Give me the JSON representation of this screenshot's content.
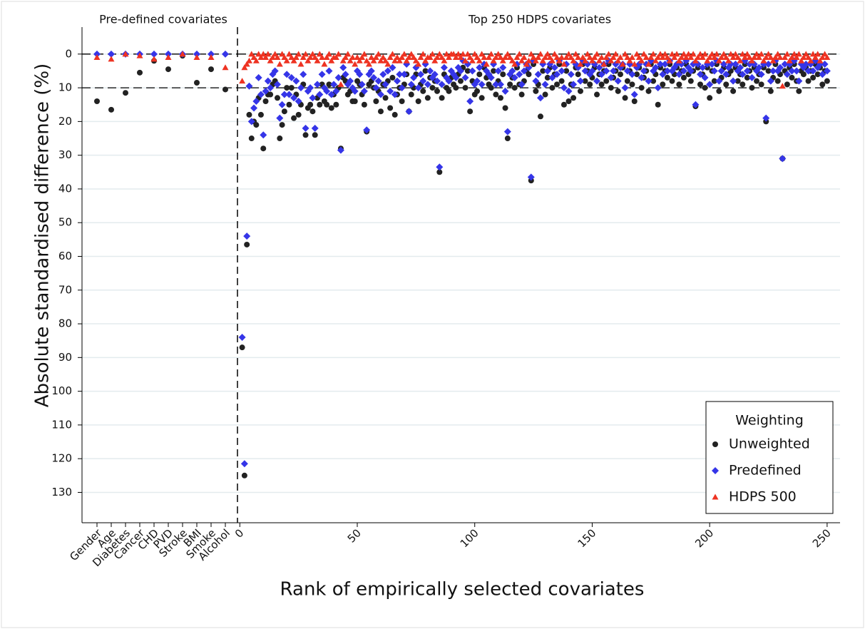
{
  "chart_data": [
    {
      "type": "scatter",
      "title": "Pre-defined covariates",
      "ylabel": "Absolute standardised difference (%)",
      "categories": [
        "Gender",
        "Age",
        "Diabetes",
        "Cancer",
        "CHD",
        "PVD",
        "Stroke",
        "BMI",
        "Smoke",
        "Alcohol"
      ],
      "series": [
        {
          "color": "#222222",
          "marker": "circle",
          "values": [
            14,
            16.5,
            11.5,
            5.5,
            2,
            4.5,
            0.5,
            8.5,
            4.5,
            10.5
          ]
        },
        {
          "color": "#3535e8",
          "marker": "diamond",
          "values": [
            0,
            0,
            0,
            0,
            0,
            0,
            0,
            0,
            0,
            0
          ]
        },
        {
          "color": "#ee3322",
          "marker": "triangle",
          "values": [
            1,
            1.5,
            0,
            0.5,
            1.5,
            1,
            0,
            1,
            1,
            4
          ]
        }
      ],
      "ylim": [
        139,
        -8
      ],
      "yticks": [
        0,
        10,
        20,
        30,
        40,
        50,
        60,
        70,
        80,
        90,
        100,
        110,
        120,
        130
      ],
      "grid": true,
      "reference_lines": [
        0,
        10
      ]
    },
    {
      "type": "scatter",
      "title": "Top 250 HDPS covariates",
      "xlabel": "Rank of empirically selected covariates",
      "legend_title": "Weighting",
      "legend": "lower right",
      "x": [
        1,
        2,
        3,
        4,
        5,
        6,
        7,
        8,
        9,
        10,
        11,
        12,
        13,
        14,
        15,
        16,
        17,
        18,
        19,
        20,
        21,
        22,
        23,
        24,
        25,
        26,
        27,
        28,
        29,
        30,
        31,
        32,
        33,
        34,
        35,
        36,
        37,
        38,
        39,
        40,
        41,
        42,
        43,
        44,
        45,
        46,
        47,
        48,
        49,
        50,
        51,
        52,
        53,
        54,
        55,
        56,
        57,
        58,
        59,
        60,
        61,
        62,
        63,
        64,
        65,
        66,
        67,
        68,
        69,
        70,
        71,
        72,
        73,
        74,
        75,
        76,
        77,
        78,
        79,
        80,
        81,
        82,
        83,
        84,
        85,
        86,
        87,
        88,
        89,
        90,
        91,
        92,
        93,
        94,
        95,
        96,
        97,
        98,
        99,
        100,
        101,
        102,
        103,
        104,
        105,
        106,
        107,
        108,
        109,
        110,
        111,
        112,
        113,
        114,
        115,
        116,
        117,
        118,
        119,
        120,
        121,
        122,
        123,
        124,
        125,
        126,
        127,
        128,
        129,
        130,
        131,
        132,
        133,
        134,
        135,
        136,
        137,
        138,
        139,
        140,
        141,
        142,
        143,
        144,
        145,
        146,
        147,
        148,
        149,
        150,
        151,
        152,
        153,
        154,
        155,
        156,
        157,
        158,
        159,
        160,
        161,
        162,
        163,
        164,
        165,
        166,
        167,
        168,
        169,
        170,
        171,
        172,
        173,
        174,
        175,
        176,
        177,
        178,
        179,
        180,
        181,
        182,
        183,
        184,
        185,
        186,
        187,
        188,
        189,
        190,
        191,
        192,
        193,
        194,
        195,
        196,
        197,
        198,
        199,
        200,
        201,
        202,
        203,
        204,
        205,
        206,
        207,
        208,
        209,
        210,
        211,
        212,
        213,
        214,
        215,
        216,
        217,
        218,
        219,
        220,
        221,
        222,
        223,
        224,
        225,
        226,
        227,
        228,
        229,
        230,
        231,
        232,
        233,
        234,
        235,
        236,
        237,
        238,
        239,
        240,
        241,
        242,
        243,
        244,
        245,
        246,
        247,
        248,
        249,
        250
      ],
      "series": [
        {
          "name": "Unweighted",
          "color": "#222222",
          "marker": "circle",
          "values": [
            87,
            125,
            56.5,
            18,
            25,
            20,
            21,
            13,
            18,
            28,
            14,
            12,
            12,
            9,
            8,
            13,
            25,
            21,
            17,
            10,
            15,
            10,
            19,
            12,
            18,
            15,
            9,
            24,
            16,
            15,
            17,
            24,
            13,
            15,
            9,
            14,
            15,
            9,
            16,
            12,
            15,
            10,
            28,
            7,
            8,
            12,
            11,
            14,
            14,
            8,
            9,
            12,
            15,
            23,
            9,
            8,
            10,
            14,
            11,
            17,
            9,
            13,
            8,
            16,
            7,
            18,
            12,
            10,
            14,
            9,
            6,
            17,
            12,
            10,
            6,
            14,
            9,
            11,
            5,
            13,
            7,
            10,
            8,
            11,
            35,
            13,
            6,
            10,
            11,
            7,
            9,
            10,
            6,
            8,
            4,
            10,
            5,
            17,
            8,
            12,
            11,
            6,
            13,
            4,
            7,
            9,
            10,
            5,
            12,
            8,
            13,
            6,
            16,
            25,
            9,
            7,
            10,
            4,
            9,
            12,
            8,
            5,
            6,
            37.5,
            3,
            11,
            9,
            18.5,
            5,
            12,
            7,
            4,
            10,
            6,
            9,
            3,
            8,
            15,
            5,
            14,
            9,
            13,
            4,
            6,
            11,
            3,
            8,
            5,
            9,
            7,
            4,
            12,
            6,
            9,
            5,
            8,
            3,
            10,
            7,
            5,
            11,
            6,
            4,
            13,
            8,
            5,
            9,
            14,
            6,
            4,
            10,
            7,
            5,
            11,
            3,
            8,
            6,
            15,
            4,
            9,
            5,
            7,
            3,
            8,
            6,
            4,
            9,
            5,
            7,
            3,
            6,
            8,
            5,
            15.5,
            4,
            9,
            6,
            10,
            4,
            13,
            5,
            8,
            3,
            11,
            7,
            4,
            9,
            6,
            5,
            11,
            4,
            8,
            6,
            9,
            3,
            7,
            5,
            10,
            4,
            8,
            6,
            9,
            4,
            20,
            5,
            11,
            7,
            3,
            8,
            6,
            31,
            5,
            9,
            4,
            7,
            3,
            8,
            11,
            5,
            6,
            4,
            8,
            5,
            7,
            3,
            6,
            4,
            9,
            5,
            8
          ]
        },
        {
          "name": "Predefined",
          "color": "#3535e8",
          "marker": "diamond",
          "values": [
            84,
            121.5,
            54,
            9.5,
            20,
            16,
            14,
            7,
            12,
            24,
            11,
            8,
            10,
            6,
            5,
            9,
            19,
            15,
            12,
            6,
            12,
            7,
            13,
            8,
            14,
            10,
            6,
            22,
            11,
            10,
            13,
            22,
            9,
            12,
            6,
            10,
            11,
            5,
            12,
            9,
            11,
            7,
            28.5,
            4,
            6,
            9,
            8,
            10,
            11,
            5,
            6,
            9,
            11,
            22.5,
            6,
            5,
            7,
            10,
            8,
            12,
            6,
            9,
            5,
            11,
            4,
            12,
            8,
            6,
            10,
            6,
            3,
            17,
            9,
            7,
            4,
            10,
            6,
            8,
            3,
            9,
            5,
            7,
            6,
            8,
            33.5,
            9,
            4,
            7,
            8,
            5,
            6,
            7,
            4,
            5,
            2,
            7,
            3,
            14,
            5,
            9,
            8,
            4,
            9,
            3,
            5,
            6,
            7,
            3,
            9,
            5,
            9,
            4,
            11,
            23,
            6,
            5,
            7,
            3,
            6,
            9,
            5,
            3,
            4,
            36.5,
            2,
            8,
            6,
            13,
            3,
            9,
            5,
            3,
            7,
            4,
            6,
            2,
            5,
            10,
            3,
            11,
            6,
            9,
            3,
            4,
            8,
            2,
            5,
            3,
            6,
            5,
            3,
            8,
            4,
            6,
            3,
            5,
            2,
            7,
            5,
            3,
            8,
            4,
            3,
            10,
            5,
            3,
            6,
            12,
            4,
            3,
            7,
            5,
            3,
            8,
            2,
            5,
            4,
            10,
            3,
            6,
            3,
            5,
            2,
            5,
            4,
            3,
            6,
            3,
            5,
            2,
            4,
            5,
            3,
            15,
            3,
            6,
            4,
            7,
            3,
            9,
            3,
            5,
            2,
            8,
            5,
            3,
            6,
            4,
            3,
            8,
            3,
            5,
            4,
            6,
            2,
            5,
            3,
            7,
            3,
            5,
            4,
            6,
            3,
            19,
            3,
            8,
            5,
            2,
            5,
            4,
            31,
            3,
            6,
            3,
            5,
            2,
            5,
            8,
            3,
            4,
            3,
            5,
            3,
            5,
            2,
            4,
            3,
            6,
            3,
            5
          ]
        },
        {
          "name": "HDPS 500",
          "color": "#ee3322",
          "marker": "triangle",
          "values": [
            8,
            4,
            3,
            2,
            0,
            1,
            2,
            0,
            1,
            0,
            1,
            0,
            2,
            1,
            0,
            1,
            3,
            0,
            1,
            2,
            0,
            1,
            2,
            1,
            0,
            3,
            1,
            0,
            2,
            1,
            0,
            1,
            2,
            0,
            1,
            3,
            1,
            0,
            2,
            1,
            1,
            0,
            9,
            2,
            1,
            0,
            2,
            1,
            3,
            1,
            2,
            1,
            0,
            2,
            3,
            1,
            2,
            1,
            0,
            2,
            1,
            2,
            3,
            1,
            0,
            2,
            1,
            2,
            1,
            0,
            2,
            1,
            0,
            1,
            2,
            3,
            1,
            0,
            2,
            1,
            1,
            0,
            2,
            1,
            0,
            1,
            2,
            0,
            1,
            0,
            0,
            1,
            0,
            1,
            0,
            2,
            0,
            1,
            2,
            0,
            1,
            2,
            0,
            1,
            3,
            1,
            0,
            2,
            1,
            0,
            1,
            2,
            1,
            0,
            1,
            2,
            3,
            1,
            0,
            2,
            1,
            3,
            2,
            0,
            1,
            2,
            1,
            0,
            2,
            1,
            0,
            1,
            2,
            0,
            1,
            2,
            1,
            3,
            1,
            0,
            1,
            2,
            0,
            1,
            3,
            1,
            2,
            0,
            1,
            2,
            1,
            0,
            2,
            1,
            3,
            1,
            0,
            2,
            1,
            0,
            2,
            1,
            3,
            0,
            1,
            2,
            1,
            3,
            0,
            1,
            2,
            0,
            1,
            3,
            1,
            0,
            2,
            1,
            0,
            1,
            0,
            1,
            2,
            0,
            1,
            0,
            2,
            1,
            0,
            1,
            0,
            1,
            0,
            2,
            1,
            0,
            1,
            0,
            2,
            1,
            0,
            1,
            0,
            2,
            1,
            0,
            1,
            2,
            0,
            1,
            0,
            1,
            2,
            0,
            1,
            0,
            1,
            2,
            1,
            0,
            1,
            0,
            2,
            1,
            0,
            1,
            2,
            1,
            0,
            1,
            9.5,
            1,
            0,
            2,
            1,
            0,
            1,
            0,
            2,
            1,
            0,
            1,
            2,
            0,
            1,
            0,
            2,
            1,
            0,
            1
          ]
        }
      ],
      "xlim": [
        -1,
        255.5
      ],
      "xticks": [
        0,
        50,
        100,
        150,
        200,
        250
      ],
      "ylim": [
        139,
        -8
      ],
      "yticks": [
        0,
        10,
        20,
        30,
        40,
        50,
        60,
        70,
        80,
        90,
        100,
        110,
        120,
        130
      ],
      "grid": true,
      "reference_lines": [
        0,
        10
      ]
    }
  ]
}
